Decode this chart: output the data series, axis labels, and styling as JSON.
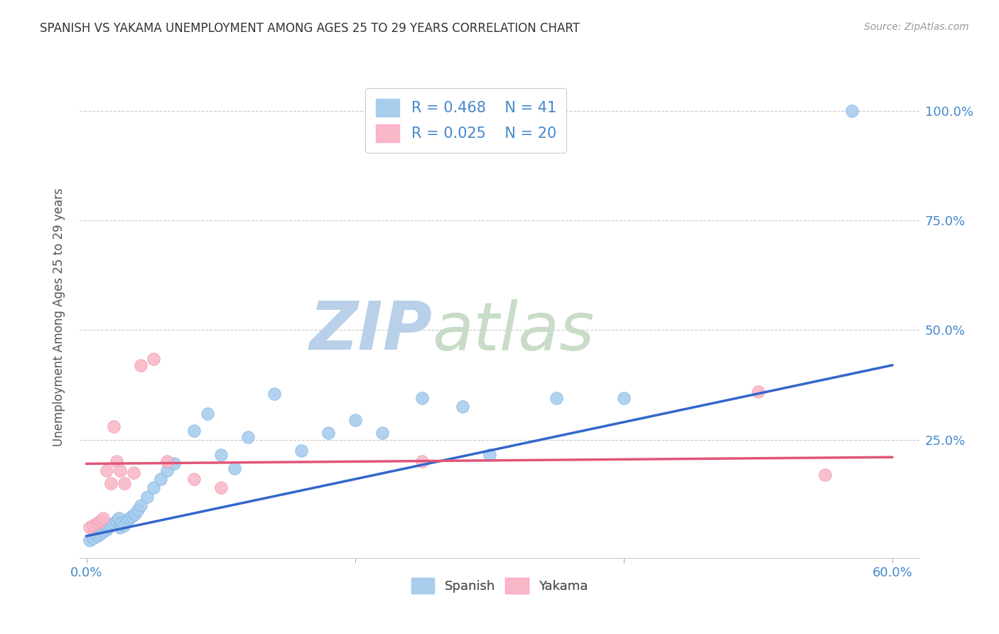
{
  "title": "SPANISH VS YAKAMA UNEMPLOYMENT AMONG AGES 25 TO 29 YEARS CORRELATION CHART",
  "source": "Source: ZipAtlas.com",
  "ylabel": "Unemployment Among Ages 25 to 29 years",
  "xlim": [
    -0.005,
    0.62
  ],
  "ylim": [
    -0.02,
    1.08
  ],
  "xtick_vals": [
    0.0,
    0.2,
    0.4,
    0.6
  ],
  "xtick_labels_ends": [
    "0.0%",
    "60.0%"
  ],
  "xtick_vals_ends": [
    0.0,
    0.6
  ],
  "ytick_vals": [
    0.25,
    0.5,
    0.75,
    1.0
  ],
  "ytick_labels": [
    "25.0%",
    "50.0%",
    "75.0%",
    "100.0%"
  ],
  "spanish_color": "#A8CEEE",
  "yakama_color": "#F9B8C8",
  "spanish_edge_color": "#7AAFDF",
  "yakama_edge_color": "#F090A8",
  "spanish_line_color": "#3366CC",
  "yakama_line_color": "#E05578",
  "label_color": "#4488CC",
  "tick_color": "#4488CC",
  "R_spanish": "0.468",
  "N_spanish": "41",
  "R_yakama": "0.025",
  "N_yakama": "20",
  "watermark_zip": "ZIP",
  "watermark_atlas": "atlas",
  "watermark_color_zip": "#C8DCF0",
  "watermark_color_atlas": "#D0E8D0",
  "spanish_x": [
    0.002,
    0.005,
    0.008,
    0.01,
    0.012,
    0.015,
    0.016,
    0.018,
    0.02,
    0.022,
    0.024,
    0.025,
    0.026,
    0.028,
    0.03,
    0.032,
    0.034,
    0.036,
    0.038,
    0.04,
    0.045,
    0.05,
    0.055,
    0.06,
    0.065,
    0.08,
    0.09,
    0.1,
    0.11,
    0.12,
    0.14,
    0.16,
    0.18,
    0.2,
    0.22,
    0.25,
    0.28,
    0.3,
    0.35,
    0.4,
    0.57
  ],
  "spanish_y": [
    0.02,
    0.025,
    0.03,
    0.035,
    0.04,
    0.045,
    0.05,
    0.055,
    0.06,
    0.065,
    0.07,
    0.05,
    0.06,
    0.055,
    0.065,
    0.07,
    0.075,
    0.08,
    0.09,
    0.1,
    0.12,
    0.14,
    0.16,
    0.18,
    0.195,
    0.27,
    0.31,
    0.215,
    0.185,
    0.255,
    0.355,
    0.225,
    0.265,
    0.295,
    0.265,
    0.345,
    0.325,
    0.215,
    0.345,
    0.345,
    1.0
  ],
  "yakama_x": [
    0.002,
    0.005,
    0.008,
    0.01,
    0.012,
    0.015,
    0.018,
    0.02,
    0.022,
    0.025,
    0.028,
    0.035,
    0.04,
    0.05,
    0.06,
    0.08,
    0.1,
    0.25,
    0.5,
    0.55
  ],
  "yakama_y": [
    0.05,
    0.055,
    0.06,
    0.065,
    0.07,
    0.18,
    0.15,
    0.28,
    0.2,
    0.18,
    0.15,
    0.175,
    0.42,
    0.435,
    0.2,
    0.16,
    0.14,
    0.2,
    0.36,
    0.17
  ],
  "blue_trend_x0": 0.0,
  "blue_trend_x1": 0.6,
  "blue_trend_y0": 0.03,
  "blue_trend_y1": 0.42,
  "pink_trend_x0": 0.0,
  "pink_trend_x1": 0.6,
  "pink_trend_y0": 0.195,
  "pink_trend_y1": 0.21
}
